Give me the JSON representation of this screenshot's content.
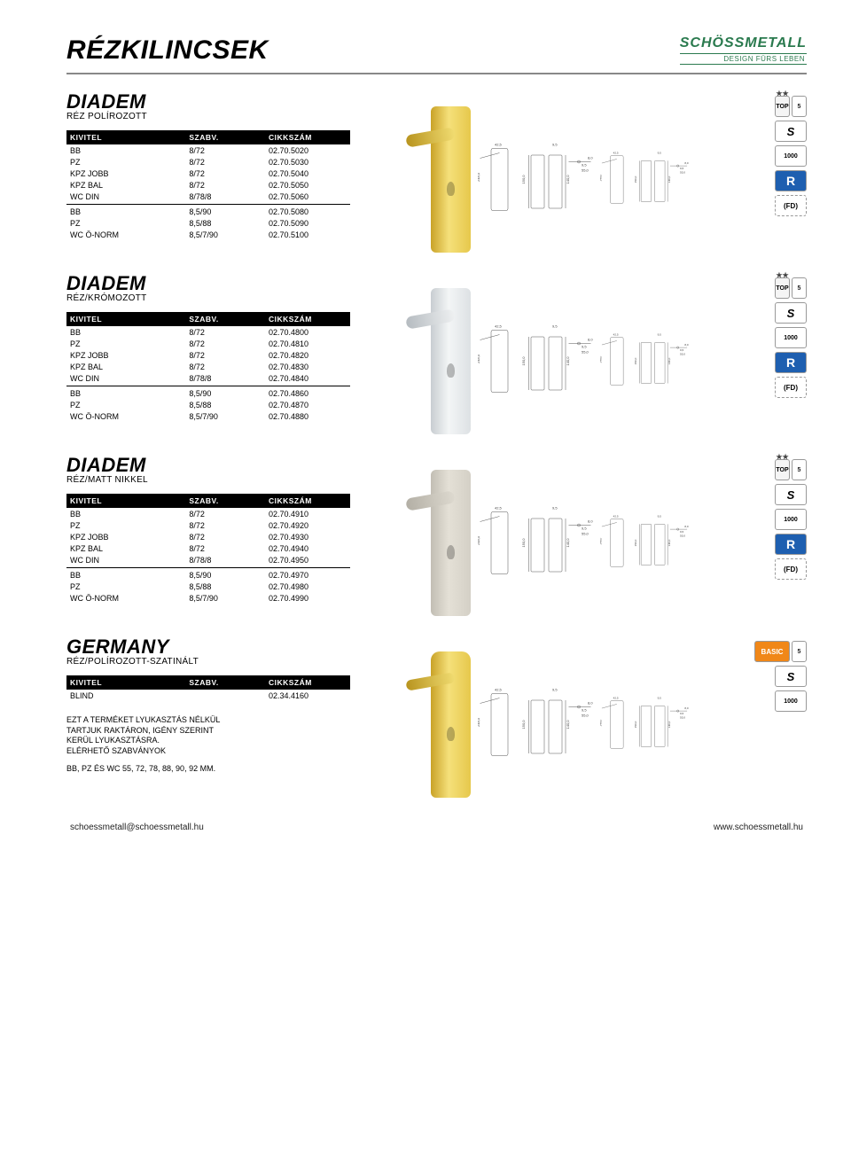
{
  "page_title": "RÉZKILINCSEK",
  "logo": {
    "main": "SCHÖSSMETALL",
    "sub": "DESIGN FÜRS LEBEN"
  },
  "columns": {
    "c1": "KIVITEL",
    "c2": "SZABV.",
    "c3": "CIKKSZÁM"
  },
  "badges": {
    "top": "TOP",
    "jahre": "5",
    "s": "S",
    "num": "1000",
    "r": "R",
    "fd": "(FD)",
    "basic": "BASIC"
  },
  "products": [
    {
      "name": "DIADEM",
      "finish": "RÉZ POLÍROZOTT",
      "color_class": "gold",
      "badge_set": "full",
      "rows1": [
        {
          "k": "BB",
          "s": "8/72",
          "c": "02.70.5020"
        },
        {
          "k": "PZ",
          "s": "8/72",
          "c": "02.70.5030"
        },
        {
          "k": "KPZ JOBB",
          "s": "8/72",
          "c": "02.70.5040"
        },
        {
          "k": "KPZ BAL",
          "s": "8/72",
          "c": "02.70.5050"
        },
        {
          "k": "WC DIN",
          "s": "8/78/8",
          "c": "02.70.5060"
        }
      ],
      "rows2": [
        {
          "k": "BB",
          "s": "8,5/90",
          "c": "02.70.5080"
        },
        {
          "k": "PZ",
          "s": "8,5/88",
          "c": "02.70.5090"
        },
        {
          "k": "WC Ö-NORM",
          "s": "8,5/7/90",
          "c": "02.70.5100"
        }
      ]
    },
    {
      "name": "DIADEM",
      "finish": "RÉZ/KRÓMOZOTT",
      "color_class": "chrome",
      "badge_set": "full",
      "rows1": [
        {
          "k": "BB",
          "s": "8/72",
          "c": "02.70.4800"
        },
        {
          "k": "PZ",
          "s": "8/72",
          "c": "02.70.4810"
        },
        {
          "k": "KPZ JOBB",
          "s": "8/72",
          "c": "02.70.4820"
        },
        {
          "k": "KPZ BAL",
          "s": "8/72",
          "c": "02.70.4830"
        },
        {
          "k": "WC DIN",
          "s": "8/78/8",
          "c": "02.70.4840"
        }
      ],
      "rows2": [
        {
          "k": "BB",
          "s": "8,5/90",
          "c": "02.70.4860"
        },
        {
          "k": "PZ",
          "s": "8,5/88",
          "c": "02.70.4870"
        },
        {
          "k": "WC Ö-NORM",
          "s": "8,5/7/90",
          "c": "02.70.4880"
        }
      ]
    },
    {
      "name": "DIADEM",
      "finish": "RÉZ/MATT NIKKEL",
      "color_class": "nickel",
      "badge_set": "full",
      "rows1": [
        {
          "k": "BB",
          "s": "8/72",
          "c": "02.70.4910"
        },
        {
          "k": "PZ",
          "s": "8/72",
          "c": "02.70.4920"
        },
        {
          "k": "KPZ JOBB",
          "s": "8/72",
          "c": "02.70.4930"
        },
        {
          "k": "KPZ BAL",
          "s": "8/72",
          "c": "02.70.4940"
        },
        {
          "k": "WC DIN",
          "s": "8/78/8",
          "c": "02.70.4950"
        }
      ],
      "rows2": [
        {
          "k": "BB",
          "s": "8,5/90",
          "c": "02.70.4970"
        },
        {
          "k": "PZ",
          "s": "8,5/88",
          "c": "02.70.4980"
        },
        {
          "k": "WC Ö-NORM",
          "s": "8,5/7/90",
          "c": "02.70.4990"
        }
      ]
    },
    {
      "name": "GERMANY",
      "finish": "RÉZ/POLÍROZOTT-SZATINÁLT",
      "color_class": "gold-img",
      "badge_set": "basic",
      "rows1": [
        {
          "k": "BLIND",
          "s": "",
          "c": "02.34.4160"
        }
      ],
      "rows2": [],
      "note": {
        "l1": "EZT A TERMÉKET LYUKASZTÁS NÉLKÜL",
        "l2": "TARTJUK RAKTÁRON, IGÉNY SZERINT",
        "l3": "KERÜL LYUKASZTÁSRA.",
        "l4": "ELÉRHETŐ SZABVÁNYOK",
        "l5": "BB, PZ ÉS WC    55, 72, 78, 88, 90, 92 MM."
      }
    }
  ],
  "diagram_labels": {
    "w1": "42,5",
    "w2": "9,5",
    "h1": "150,0",
    "h2": "55,0",
    "h3": "140,0",
    "h4": "248,0",
    "h5": "128,0",
    "w3": "8,0"
  },
  "footer": {
    "left": "schoessmetall@schoessmetall.hu",
    "right": "www.schoessmetall.hu"
  }
}
